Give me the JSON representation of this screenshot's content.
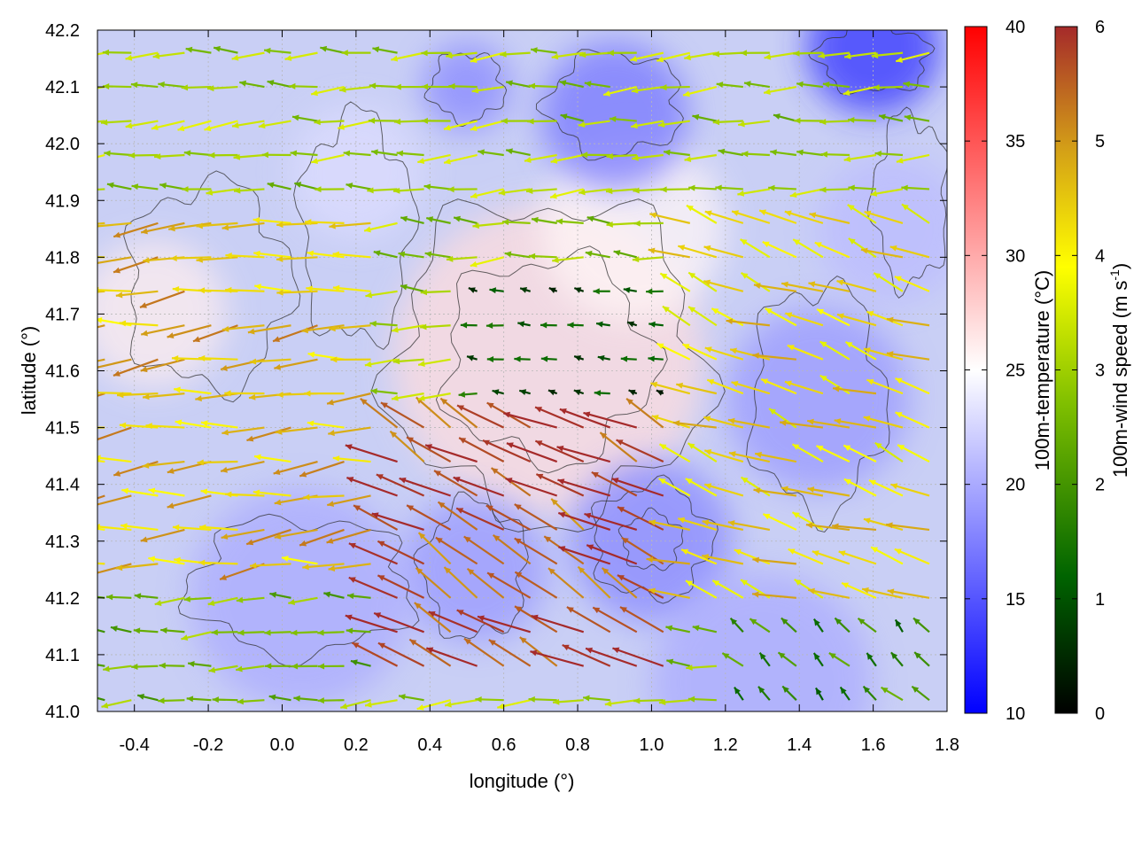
{
  "chart_data": {
    "type": "heatmap",
    "subtype": "vector-field over scalar field with contours",
    "title": "",
    "xlabel": "longitude (°)",
    "ylabel": "latitude (°)",
    "xlim": [
      -0.5,
      1.8
    ],
    "ylim": [
      41.0,
      42.2
    ],
    "x_ticks": [
      -0.4,
      -0.2,
      0.0,
      0.2,
      0.4,
      0.6,
      0.8,
      1.0,
      1.2,
      1.4,
      1.6,
      1.8
    ],
    "x_tick_labels": [
      "-0.4",
      "-0.2",
      "0.0",
      "0.2",
      "0.4",
      "0.6",
      "0.8",
      "1.0",
      "1.2",
      "1.4",
      "1.6",
      "1.8"
    ],
    "y_ticks": [
      41.0,
      41.1,
      41.2,
      41.3,
      41.4,
      41.5,
      41.6,
      41.7,
      41.8,
      41.9,
      42.0,
      42.1,
      42.2
    ],
    "y_tick_labels": [
      "41.0",
      "41.1",
      "41.2",
      "41.3",
      "41.4",
      "41.5",
      "41.6",
      "41.7",
      "41.8",
      "41.9",
      "42.0",
      "42.1",
      "42.2"
    ],
    "grid": true,
    "temperature_colorbar": {
      "label": "100m-temperature (°C)",
      "range": [
        10,
        40
      ],
      "ticks": [
        10,
        15,
        20,
        25,
        30,
        35,
        40
      ],
      "tick_labels": [
        "10",
        "15",
        "20",
        "25",
        "30",
        "35",
        "40"
      ],
      "colors": [
        "#0000ff",
        "#ffffff",
        "#ff0000"
      ]
    },
    "wind_colorbar": {
      "label": "100m-wind speed (m s-1)",
      "label_parts": [
        "100m-wind speed (m s",
        "-1",
        ")"
      ],
      "range": [
        0,
        6
      ],
      "ticks": [
        0,
        1,
        2,
        3,
        4,
        5,
        6
      ],
      "tick_labels": [
        "0",
        "1",
        "2",
        "3",
        "4",
        "5",
        "6"
      ],
      "colors": [
        "#000000",
        "#006400",
        "#7fbf00",
        "#ffff00",
        "#d4a017",
        "#a52a2a"
      ]
    },
    "temperature_blobs": [
      {
        "lon": 0.72,
        "lat": 41.62,
        "radius": 0.42,
        "temp": 27
      },
      {
        "lon": 0.95,
        "lat": 41.85,
        "radius": 0.25,
        "temp": 25.5
      },
      {
        "lon": -0.35,
        "lat": 41.7,
        "radius": 0.2,
        "temp": 26
      },
      {
        "lon": 1.0,
        "lat": 41.3,
        "radius": 0.22,
        "temp": 18
      },
      {
        "lon": 0.52,
        "lat": 41.25,
        "radius": 0.2,
        "temp": 19
      },
      {
        "lon": 0.05,
        "lat": 41.2,
        "radius": 0.3,
        "temp": 20
      },
      {
        "lon": 1.6,
        "lat": 42.17,
        "radius": 0.18,
        "temp": 13
      },
      {
        "lon": 0.9,
        "lat": 42.05,
        "radius": 0.2,
        "temp": 17
      },
      {
        "lon": 0.5,
        "lat": 42.1,
        "radius": 0.12,
        "temp": 18
      },
      {
        "lon": 1.45,
        "lat": 41.55,
        "radius": 0.25,
        "temp": 19
      },
      {
        "lon": 1.3,
        "lat": 41.05,
        "radius": 0.3,
        "temp": 20
      },
      {
        "lon": 1.65,
        "lat": 41.85,
        "radius": 0.2,
        "temp": 21
      },
      {
        "lon": 0.2,
        "lat": 41.95,
        "radius": 0.18,
        "temp": 23
      }
    ],
    "contours": [
      {
        "lon": 0.72,
        "lat": 41.62,
        "rx": 0.42,
        "ry": 0.28
      },
      {
        "lon": 0.72,
        "lat": 41.62,
        "rx": 0.28,
        "ry": 0.18
      },
      {
        "lon": 1.0,
        "lat": 41.3,
        "rx": 0.16,
        "ry": 0.1
      },
      {
        "lon": 1.0,
        "lat": 41.3,
        "rx": 0.08,
        "ry": 0.05
      },
      {
        "lon": 0.52,
        "lat": 41.25,
        "rx": 0.14,
        "ry": 0.12
      },
      {
        "lon": 0.9,
        "lat": 42.07,
        "rx": 0.18,
        "ry": 0.09
      },
      {
        "lon": 0.5,
        "lat": 42.1,
        "rx": 0.1,
        "ry": 0.06
      },
      {
        "lon": 1.45,
        "lat": 41.55,
        "rx": 0.18,
        "ry": 0.2
      },
      {
        "lon": -0.2,
        "lat": 41.75,
        "rx": 0.22,
        "ry": 0.18
      },
      {
        "lon": 0.2,
        "lat": 41.85,
        "rx": 0.15,
        "ry": 0.2
      },
      {
        "lon": 1.6,
        "lat": 42.15,
        "rx": 0.15,
        "ry": 0.06
      },
      {
        "lon": 1.7,
        "lat": 41.9,
        "rx": 0.1,
        "ry": 0.15
      },
      {
        "lon": 0.05,
        "lat": 41.22,
        "rx": 0.3,
        "ry": 0.12
      }
    ],
    "wind_field": {
      "lon_start": -0.48,
      "lon_step": 0.072,
      "lon_count": 32,
      "lat_start": 41.02,
      "lat_step": 0.06,
      "lat_count": 20,
      "regions": [
        {
          "name": "west-strong-inflow",
          "lon": [
            -0.5,
            0.3
          ],
          "lat": [
            41.2,
            41.9
          ],
          "speed": 4.6,
          "dir_deg": 185
        },
        {
          "name": "north-moderate",
          "lon": [
            -0.5,
            1.8
          ],
          "lat": [
            41.9,
            42.2
          ],
          "speed": 3.0,
          "dir_deg": 180
        },
        {
          "name": "center-calm",
          "lon": [
            0.5,
            1.2
          ],
          "lat": [
            41.55,
            41.8
          ],
          "speed": 1.0,
          "dir_deg": 170
        },
        {
          "name": "southeast-strong",
          "lon": [
            0.25,
            1.1
          ],
          "lat": [
            41.05,
            41.55
          ],
          "speed": 5.6,
          "dir_deg": 150
        },
        {
          "name": "east",
          "lon": [
            1.1,
            1.8
          ],
          "lat": [
            41.2,
            41.9
          ],
          "speed": 4.2,
          "dir_deg": 160
        },
        {
          "name": "southeast-corner-calm",
          "lon": [
            1.2,
            1.8
          ],
          "lat": [
            41.0,
            41.15
          ],
          "speed": 1.8,
          "dir_deg": 135
        },
        {
          "name": "southwest-weak",
          "lon": [
            -0.5,
            0.25
          ],
          "lat": [
            41.0,
            41.2
          ],
          "speed": 2.6,
          "dir_deg": 180
        }
      ]
    }
  }
}
